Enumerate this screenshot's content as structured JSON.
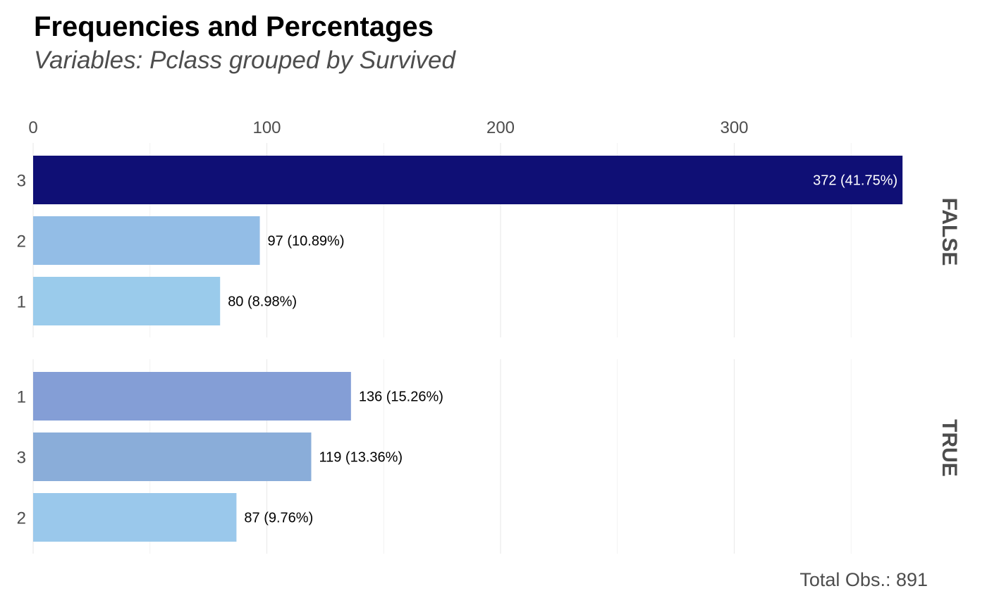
{
  "chart_data": {
    "type": "bar",
    "orientation": "horizontal",
    "title": "Frequencies and Percentages",
    "subtitle": "Variables: Pclass grouped by Survived",
    "caption": "Total Obs.: 891",
    "xlim": [
      0,
      372
    ],
    "x_ticks": [
      "0",
      "100",
      "200",
      "300"
    ],
    "x_tick_values": [
      0,
      100,
      200,
      300
    ],
    "x_axis_position": "top",
    "grid": true,
    "legend": "none",
    "panels": [
      {
        "group": "FALSE",
        "bars": [
          {
            "category": "3",
            "value": 372,
            "label": "372 (41.75%)",
            "color": "#0f0f75",
            "label_color": "#ffffff",
            "label_inside": true
          },
          {
            "category": "2",
            "value": 97,
            "label": "97 (10.89%)",
            "color": "#93bde6",
            "label_color": "#000000",
            "label_inside": false
          },
          {
            "category": "1",
            "value": 80,
            "label": "80 (8.98%)",
            "color": "#9acbeb",
            "label_color": "#000000",
            "label_inside": false
          }
        ]
      },
      {
        "group": "TRUE",
        "bars": [
          {
            "category": "1",
            "value": 136,
            "label": "136 (15.26%)",
            "color": "#849ed6",
            "label_color": "#000000",
            "label_inside": false
          },
          {
            "category": "3",
            "value": 119,
            "label": "119 (13.36%)",
            "color": "#8aadd9",
            "label_color": "#000000",
            "label_inside": false
          },
          {
            "category": "2",
            "value": 87,
            "label": "87 (9.76%)",
            "color": "#9ac8eb",
            "label_color": "#000000",
            "label_inside": false
          }
        ]
      }
    ]
  }
}
